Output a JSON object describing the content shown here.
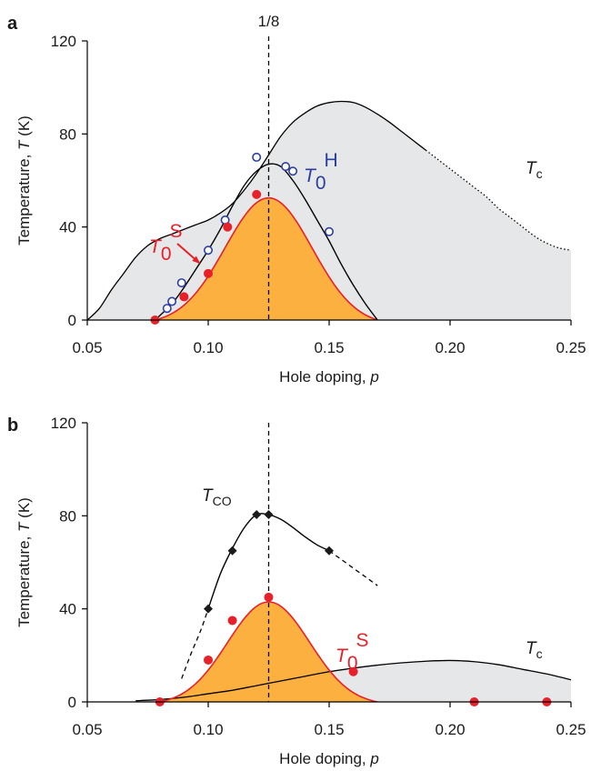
{
  "chart_data": [
    {
      "panel": "a",
      "type": "line",
      "xlabel_text": "Hole doping, ",
      "xlabel_var": "p",
      "ylabel_text": "Temperature, ",
      "ylabel_var": "T",
      "ylabel_unit": " (K)",
      "xlim": [
        0.05,
        0.25
      ],
      "ylim": [
        0,
        120
      ],
      "xticks": [
        "0.05",
        "0.10",
        "0.15",
        "0.20",
        "0.25"
      ],
      "yticks": [
        "0",
        "40",
        "80",
        "120"
      ],
      "vline": {
        "x": 0.125,
        "label": "1/8"
      },
      "annotations": [
        {
          "name": "Tc",
          "var": "T",
          "sub": "c"
        },
        {
          "name": "T0H",
          "var": "T",
          "sub": "0",
          "sup": "H",
          "color": "#2a3f9e"
        },
        {
          "name": "T0S",
          "var": "T",
          "sub": "0",
          "sup": "S",
          "color": "#e8202a"
        }
      ],
      "series": [
        {
          "key": "tc",
          "color": "#000000",
          "fill": "#e6e7e8",
          "x": [
            0.05,
            0.055,
            0.06,
            0.065,
            0.07,
            0.075,
            0.08,
            0.085,
            0.09,
            0.095,
            0.1,
            0.105,
            0.11,
            0.115,
            0.12,
            0.125,
            0.13,
            0.135,
            0.14,
            0.145,
            0.15,
            0.155,
            0.16,
            0.165,
            0.17,
            0.175,
            0.18,
            0.185,
            0.19,
            0.195,
            0.2,
            0.205,
            0.21,
            0.215,
            0.22,
            0.225,
            0.23,
            0.235,
            0.24,
            0.245,
            0.25
          ],
          "y": [
            0,
            5,
            13,
            20,
            27,
            32,
            35,
            37,
            39,
            41,
            43,
            46,
            50,
            56,
            63,
            71,
            79,
            85,
            89,
            92,
            93.5,
            94,
            93.5,
            91.5,
            88.5,
            85,
            81,
            77,
            73,
            69,
            65,
            61,
            57,
            53,
            48,
            44,
            40,
            36,
            33,
            31,
            30
          ],
          "dotted_from": 0.19
        },
        {
          "key": "t0h_curve",
          "color": "#000000",
          "x": [
            0.078,
            0.085,
            0.09,
            0.095,
            0.1,
            0.105,
            0.11,
            0.115,
            0.12,
            0.125,
            0.13,
            0.135,
            0.14,
            0.145,
            0.15,
            0.155,
            0.16,
            0.165,
            0.17
          ],
          "y": [
            0,
            7,
            14,
            22,
            30,
            39,
            49,
            58,
            64,
            67,
            66,
            60,
            52,
            43,
            34,
            24,
            15,
            7,
            0
          ]
        },
        {
          "key": "t0s_curve",
          "color": "#e8202a",
          "fill": "#fbb040",
          "gauss": {
            "x0": 0.078,
            "x1": 0.17,
            "peak": 52.5,
            "center": 0.125,
            "sigma": 0.018
          }
        },
        {
          "key": "t0h_points",
          "marker": "open-circle",
          "color": "#2a3f9e",
          "x": [
            0.083,
            0.085,
            0.089,
            0.1,
            0.107,
            0.12,
            0.132,
            0.135,
            0.15
          ],
          "y": [
            5,
            8,
            16,
            30,
            43,
            70,
            66,
            64,
            38
          ]
        },
        {
          "key": "t0s_points",
          "marker": "filled-circle",
          "color": "#e8202a",
          "x": [
            0.078,
            0.09,
            0.1,
            0.108,
            0.12
          ],
          "y": [
            0,
            10,
            20,
            40,
            54
          ]
        }
      ]
    },
    {
      "panel": "b",
      "type": "line",
      "xlabel_text": "Hole doping, ",
      "xlabel_var": "p",
      "ylabel_text": "Temperature, ",
      "ylabel_var": "T",
      "ylabel_unit": " (K)",
      "xlim": [
        0.05,
        0.25
      ],
      "ylim": [
        0,
        120
      ],
      "xticks": [
        "0.05",
        "0.10",
        "0.15",
        "0.20",
        "0.25"
      ],
      "yticks": [
        "0",
        "40",
        "80",
        "120"
      ],
      "vline": {
        "x": 0.125
      },
      "annotations": [
        {
          "name": "TCO",
          "var": "T",
          "sub": "CO"
        },
        {
          "name": "T0S",
          "var": "T",
          "sub": "0",
          "sup": "S",
          "color": "#e8202a"
        },
        {
          "name": "Tc",
          "var": "T",
          "sub": "c"
        }
      ],
      "series": [
        {
          "key": "tc",
          "color": "#000000",
          "fill": "#e6e7e8",
          "x": [
            0.07,
            0.08,
            0.09,
            0.1,
            0.11,
            0.12,
            0.13,
            0.14,
            0.15,
            0.16,
            0.17,
            0.18,
            0.19,
            0.2,
            0.21,
            0.22,
            0.23,
            0.24,
            0.25
          ],
          "y": [
            0.5,
            1,
            2,
            3.5,
            5,
            7,
            9,
            11,
            13,
            14.5,
            15.8,
            16.8,
            17.5,
            17.8,
            17.3,
            16,
            14,
            12,
            9.5
          ]
        },
        {
          "key": "tco_curve",
          "color": "#000000",
          "x": [
            0.1,
            0.105,
            0.11,
            0.115,
            0.12,
            0.125,
            0.13,
            0.135,
            0.14,
            0.145,
            0.15
          ],
          "y": [
            40,
            55,
            66,
            75,
            80.5,
            80.5,
            78.5,
            75,
            71,
            67.5,
            65
          ],
          "dashed_before": {
            "x": [
              0.089,
              0.093,
              0.097,
              0.1
            ],
            "y": [
              10,
              21,
              31,
              40
            ]
          },
          "dashed_after": {
            "x": [
              0.15,
              0.17
            ],
            "y": [
              65,
              50
            ]
          }
        },
        {
          "key": "t0s_curve",
          "color": "#e8202a",
          "fill": "#fbb040",
          "gauss": {
            "x0": 0.08,
            "x1": 0.17,
            "peak": 43,
            "center": 0.125,
            "sigma": 0.017
          }
        },
        {
          "key": "tco_points",
          "marker": "diamond",
          "color": "#1a1a1a",
          "x": [
            0.1,
            0.11,
            0.12,
            0.125,
            0.15
          ],
          "y": [
            40,
            65,
            80.5,
            80.5,
            65
          ]
        },
        {
          "key": "t0s_points",
          "marker": "filled-circle",
          "color": "#e8202a",
          "x": [
            0.08,
            0.1,
            0.11,
            0.125,
            0.16,
            0.21,
            0.24
          ],
          "y": [
            0,
            18,
            35,
            45,
            13,
            0,
            0
          ]
        }
      ]
    }
  ]
}
